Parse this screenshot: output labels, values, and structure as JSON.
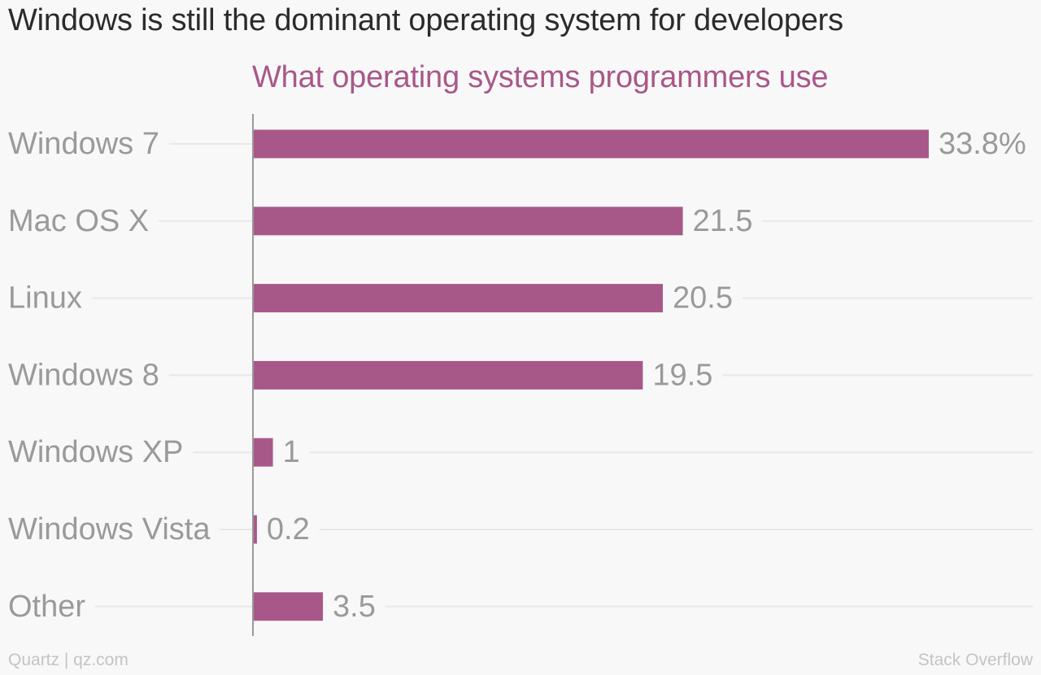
{
  "title": "Windows is still the dominant operating system for developers",
  "footer": {
    "credit": "Quartz | qz.com",
    "source": "Stack Overflow"
  },
  "colors": {
    "bar": "#a85888",
    "subtitle": "#a85888",
    "label": "#9a9a9a",
    "gridline": "#e8e8e8",
    "axis": "#9a9a9a"
  },
  "chart_data": {
    "type": "bar",
    "orientation": "horizontal",
    "title": "What operating systems programmers use",
    "categories": [
      "Windows 7",
      "Mac OS X",
      "Linux",
      "Windows 8",
      "Windows XP",
      "Windows Vista",
      "Other"
    ],
    "values": [
      33.8,
      21.5,
      20.5,
      19.5,
      1,
      0.2,
      3.5
    ],
    "value_labels": [
      "33.8%",
      "21.5",
      "20.5",
      "19.5",
      "1",
      "0.2",
      "3.5"
    ],
    "unit": "%",
    "xlim": [
      0,
      33.8
    ],
    "grid": true,
    "legend": "none"
  }
}
